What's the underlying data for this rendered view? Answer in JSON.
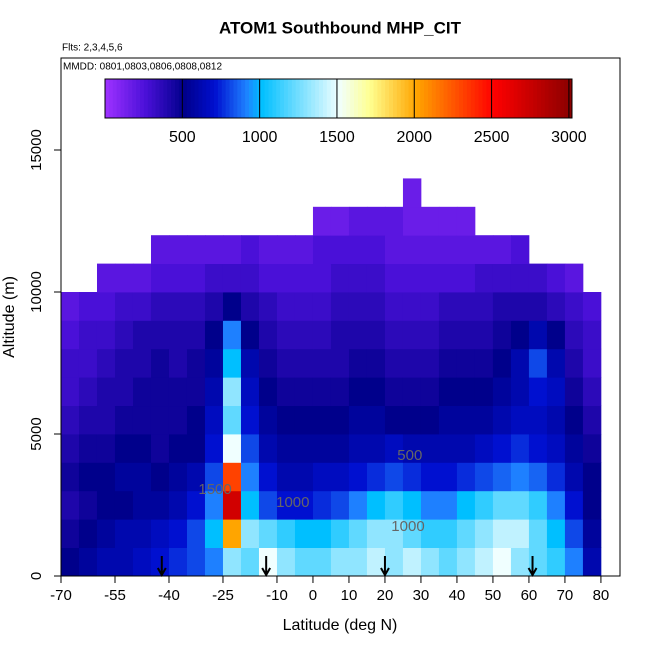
{
  "chart_data": {
    "type": "heatmap",
    "title": "ATOM1 Southbound MHP_CIT",
    "annotations": [
      "Flts: 2,3,4,5,6",
      "MMDD: 0801,0803,0806,0808,0812"
    ],
    "x_label": "Latitude (deg N)",
    "y_label": "Altitude (m)",
    "xlim": [
      -70,
      85.3
    ],
    "ylim": [
      0,
      18240
    ],
    "xticks": [
      -70,
      -55,
      -40,
      -25,
      -10,
      0,
      10,
      20,
      30,
      40,
      50,
      60,
      70,
      80
    ],
    "yticks": [
      0,
      5000,
      10000,
      15000
    ],
    "x_bins": [
      -70,
      -65,
      -60,
      -55,
      -50,
      -45,
      -40,
      -35,
      -30,
      -25,
      -20,
      -15,
      -10,
      -5,
      0,
      5,
      10,
      15,
      20,
      25,
      30,
      35,
      40,
      45,
      50,
      55,
      60,
      65,
      70,
      75,
      80
    ],
    "y_bins": [
      0,
      1000,
      2000,
      3000,
      4000,
      5000,
      6000,
      7000,
      8000,
      9000,
      10000,
      11000,
      12000,
      13000,
      14000
    ],
    "z": [
      [
        500,
        550,
        600,
        600,
        650,
        700,
        750,
        800,
        900,
        1300,
        1200,
        1500,
        1300,
        1200,
        1200,
        1300,
        1300,
        1400,
        1300,
        1400,
        1300,
        1200,
        1300,
        1400,
        1500,
        1300,
        1200,
        1100,
        900,
        600
      ],
      [
        450,
        500,
        550,
        600,
        600,
        650,
        700,
        800,
        1000,
        2000,
        1300,
        1200,
        1100,
        1000,
        1000,
        1100,
        1200,
        1300,
        1300,
        1200,
        1100,
        1100,
        1200,
        1300,
        1400,
        1400,
        1200,
        1000,
        800,
        550
      ],
      [
        400,
        450,
        500,
        500,
        550,
        550,
        600,
        700,
        900,
        2700,
        1000,
        800,
        700,
        700,
        750,
        800,
        900,
        1000,
        1100,
        1000,
        900,
        900,
        1000,
        1100,
        1200,
        1200,
        1100,
        900,
        700,
        500
      ],
      [
        450,
        500,
        500,
        550,
        550,
        500,
        550,
        600,
        800,
        2300,
        900,
        700,
        600,
        600,
        650,
        650,
        700,
        750,
        800,
        750,
        700,
        700,
        750,
        800,
        850,
        900,
        850,
        750,
        600,
        500
      ],
      [
        400,
        450,
        450,
        500,
        500,
        450,
        500,
        500,
        700,
        1500,
        800,
        600,
        550,
        550,
        550,
        550,
        600,
        600,
        650,
        600,
        600,
        600,
        600,
        650,
        700,
        750,
        700,
        650,
        550,
        450
      ],
      [
        350,
        400,
        400,
        450,
        450,
        450,
        450,
        500,
        650,
        1200,
        700,
        550,
        500,
        500,
        500,
        500,
        550,
        550,
        500,
        500,
        500,
        550,
        550,
        550,
        600,
        650,
        650,
        600,
        500,
        400
      ],
      [
        300,
        350,
        400,
        400,
        450,
        450,
        450,
        450,
        600,
        1300,
        650,
        500,
        450,
        450,
        450,
        450,
        500,
        500,
        450,
        450,
        450,
        500,
        500,
        500,
        550,
        600,
        700,
        650,
        450,
        350
      ],
      [
        300,
        300,
        350,
        400,
        400,
        450,
        400,
        450,
        550,
        1000,
        600,
        450,
        400,
        400,
        400,
        400,
        450,
        450,
        400,
        400,
        400,
        450,
        450,
        450,
        500,
        600,
        800,
        600,
        400,
        300
      ],
      [
        250,
        300,
        300,
        350,
        400,
        400,
        400,
        400,
        500,
        900,
        500,
        400,
        350,
        350,
        350,
        400,
        400,
        400,
        350,
        350,
        350,
        400,
        400,
        400,
        450,
        500,
        600,
        500,
        350,
        300
      ],
      [
        200,
        250,
        250,
        300,
        300,
        350,
        350,
        350,
        400,
        500,
        400,
        350,
        300,
        300,
        300,
        350,
        350,
        350,
        300,
        300,
        300,
        350,
        350,
        350,
        400,
        400,
        400,
        350,
        300,
        250
      ],
      [
        null,
        null,
        200,
        200,
        200,
        250,
        250,
        250,
        300,
        300,
        300,
        250,
        250,
        250,
        250,
        300,
        300,
        300,
        250,
        250,
        250,
        250,
        250,
        300,
        300,
        300,
        300,
        250,
        200,
        null
      ],
      [
        null,
        null,
        null,
        null,
        null,
        200,
        200,
        200,
        200,
        200,
        250,
        200,
        200,
        200,
        250,
        250,
        250,
        250,
        200,
        200,
        200,
        200,
        200,
        200,
        200,
        250,
        null,
        null,
        null,
        null
      ],
      [
        null,
        null,
        null,
        null,
        null,
        null,
        null,
        null,
        null,
        null,
        null,
        null,
        null,
        null,
        150,
        150,
        200,
        200,
        200,
        150,
        150,
        150,
        150,
        null,
        null,
        null,
        null,
        null,
        null,
        null
      ],
      [
        null,
        null,
        null,
        null,
        null,
        null,
        null,
        null,
        null,
        null,
        null,
        null,
        null,
        null,
        null,
        null,
        null,
        null,
        null,
        150,
        null,
        null,
        null,
        null,
        null,
        null,
        null,
        null,
        null,
        null
      ]
    ],
    "clim": [
      0,
      3020
    ],
    "colorbar_ticks": [
      500,
      1000,
      1500,
      2000,
      2500,
      3000
    ],
    "colorscale": [
      [
        0,
        "#9b30ff"
      ],
      [
        250,
        "#4a10d8"
      ],
      [
        500,
        "#00008b"
      ],
      [
        700,
        "#0010d0"
      ],
      [
        900,
        "#1e80ff"
      ],
      [
        1000,
        "#00bfff"
      ],
      [
        1500,
        "#f0ffff"
      ],
      [
        1700,
        "#ffff90"
      ],
      [
        2000,
        "#ffa500"
      ],
      [
        2500,
        "#ff0000"
      ],
      [
        3000,
        "#8b0000"
      ]
    ],
    "contour_labels": [
      {
        "text": "500",
        "x": 26.9,
        "y": 4225
      },
      {
        "text": "1000",
        "x": -5.6,
        "y": 2570
      },
      {
        "text": "1000",
        "x": 26.4,
        "y": 1725
      },
      {
        "text": "1500",
        "x": -27.2,
        "y": 3030
      }
    ],
    "contour_color": "#666666",
    "markers_x": [
      -42,
      -13,
      20,
      61
    ]
  }
}
